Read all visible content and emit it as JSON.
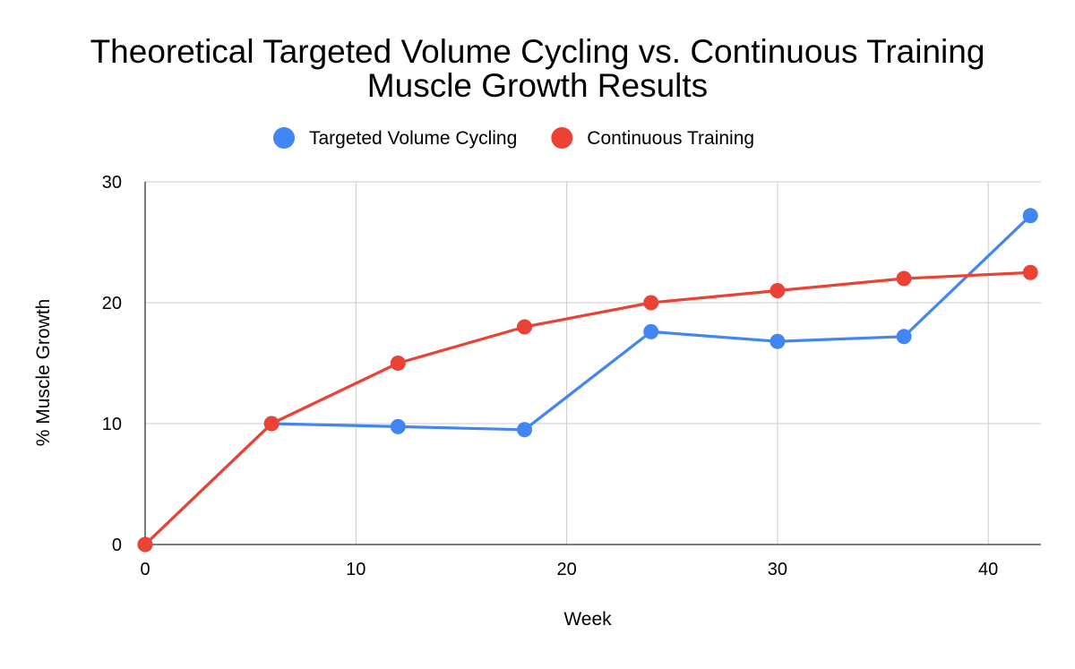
{
  "chart_data": {
    "type": "line",
    "title_lines": [
      "Theoretical Targeted Volume Cycling vs. Continuous Training",
      "Muscle Growth Results"
    ],
    "xlabel": "Week",
    "ylabel": "% Muscle Growth",
    "xlim": [
      0,
      42.5
    ],
    "ylim": [
      0,
      30
    ],
    "x_ticks": [
      0,
      10,
      20,
      30,
      40
    ],
    "y_ticks": [
      0,
      10,
      20,
      30
    ],
    "grid": true,
    "legend_position": "top",
    "series": [
      {
        "name": "Targeted Volume Cycling",
        "color": "#4285F4",
        "x": [
          0,
          6,
          12,
          18,
          24,
          30,
          36,
          42
        ],
        "values": [
          0,
          10,
          9.75,
          9.5,
          17.6,
          16.8,
          17.2,
          27.2
        ]
      },
      {
        "name": "Continuous Training",
        "color": "#EA4335",
        "x": [
          0,
          6,
          12,
          18,
          24,
          30,
          36,
          42
        ],
        "values": [
          0,
          10,
          15,
          18,
          20,
          21,
          22,
          22.5
        ]
      }
    ]
  }
}
